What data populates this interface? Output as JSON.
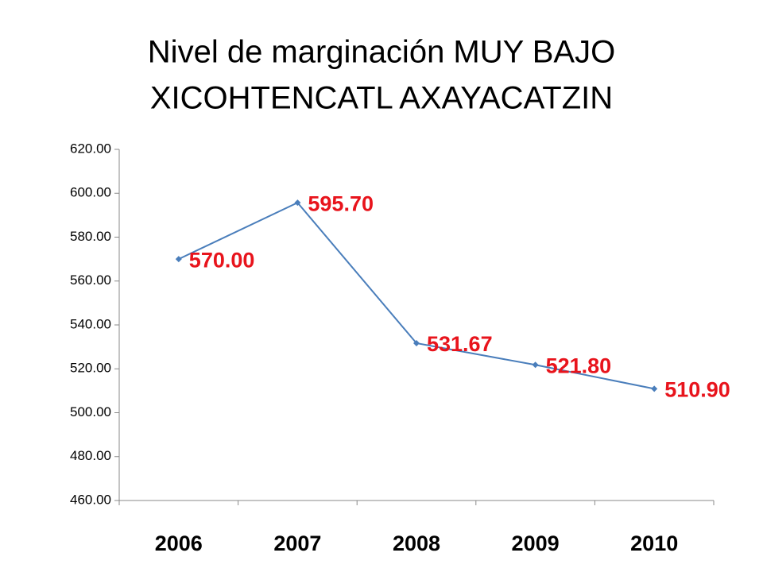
{
  "chart_data": {
    "type": "line",
    "title": [
      "Nivel de marginación MUY BAJO",
      "XICOHTENCATL AXAYACATZIN"
    ],
    "categories": [
      "2006",
      "2007",
      "2008",
      "2009",
      "2010"
    ],
    "values": [
      570,
      595.7,
      531.67,
      521.8,
      510.9
    ],
    "value_labels": [
      "570.00",
      "595.70",
      "531.67",
      "521.80",
      "510.90"
    ],
    "color": "#4a7ebb",
    "label_color": "#e8141c",
    "ylim": [
      460,
      620
    ],
    "yticks": [
      {
        "value": 460,
        "label": "460.00"
      },
      {
        "value": 480,
        "label": "480.00"
      },
      {
        "value": 500,
        "label": "500.00"
      },
      {
        "value": 520,
        "label": "520.00"
      },
      {
        "value": 540,
        "label": "540.00"
      },
      {
        "value": 560,
        "label": "560.00"
      },
      {
        "value": 580,
        "label": "580.00"
      },
      {
        "value": 600,
        "label": "600.00"
      },
      {
        "value": 620,
        "label": "620.00"
      }
    ],
    "grid": false
  }
}
